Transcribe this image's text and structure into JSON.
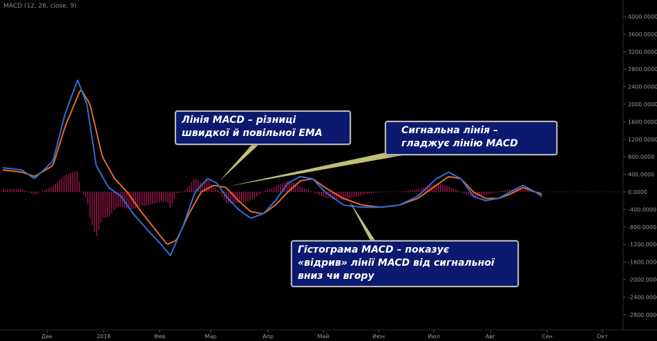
{
  "indicator_title": "MACD (12, 26, close, 9)",
  "colors": {
    "background": "#000000",
    "macd_line": "#2f6fd6",
    "signal_line": "#e86a2c",
    "histogram": "#c2185b",
    "callout_bg": "#0b1a6e",
    "pointer": "#e2e08a"
  },
  "callouts": [
    {
      "id": "macd",
      "lines": [
        "Лінія MACD – різниці",
        "швидкої й повільної EMA"
      ]
    },
    {
      "id": "signal",
      "lines": [
        "Сигнальна лінія –",
        "гладжує лінію MACD"
      ]
    },
    {
      "id": "hist",
      "lines": [
        "Гістограма MACD – показує",
        "«відрив» лінії MACD від сигнальної",
        "вниз чи вгору"
      ]
    }
  ],
  "chart_data": {
    "type": "line",
    "ylim": [
      -3000,
      4100
    ],
    "y_ticks": [
      "4000.0000",
      "3600.0000",
      "3200.0000",
      "2800.0000",
      "2400.0000",
      "2000.0000",
      "1600.0000",
      "1200.0000",
      "800.0000",
      "400.0000",
      "0.0000",
      "-400.0000",
      "-800.0000",
      "-1200.0000",
      "-1600.0000",
      "-2000.0000",
      "-2400.0000",
      "-2800.0000"
    ],
    "x_ticks": [
      "Дек",
      "2018",
      "Фев",
      "Мар",
      "Апр",
      "Май",
      "Июн",
      "Июл",
      "Авг",
      "Сен",
      "Окт"
    ],
    "series": [
      {
        "key": "macd",
        "points": [
          [
            0,
            550
          ],
          [
            0.03,
            500
          ],
          [
            0.05,
            300
          ],
          [
            0.08,
            700
          ],
          [
            0.1,
            1800
          ],
          [
            0.12,
            2550
          ],
          [
            0.135,
            2000
          ],
          [
            0.15,
            600
          ],
          [
            0.17,
            100
          ],
          [
            0.19,
            -100
          ],
          [
            0.21,
            -500
          ],
          [
            0.235,
            -900
          ],
          [
            0.255,
            -1200
          ],
          [
            0.27,
            -1450
          ],
          [
            0.29,
            -800
          ],
          [
            0.31,
            0
          ],
          [
            0.33,
            300
          ],
          [
            0.345,
            200
          ],
          [
            0.36,
            -100
          ],
          [
            0.38,
            -400
          ],
          [
            0.4,
            -600
          ],
          [
            0.42,
            -500
          ],
          [
            0.44,
            -200
          ],
          [
            0.46,
            200
          ],
          [
            0.48,
            350
          ],
          [
            0.5,
            300
          ],
          [
            0.52,
            0
          ],
          [
            0.55,
            -300
          ],
          [
            0.58,
            -350
          ],
          [
            0.61,
            -350
          ],
          [
            0.64,
            -300
          ],
          [
            0.67,
            -100
          ],
          [
            0.7,
            300
          ],
          [
            0.72,
            450
          ],
          [
            0.74,
            300
          ],
          [
            0.76,
            -100
          ],
          [
            0.78,
            -200
          ],
          [
            0.8,
            -150
          ],
          [
            0.82,
            0
          ],
          [
            0.84,
            150
          ],
          [
            0.86,
            0
          ],
          [
            0.87,
            -100
          ]
        ]
      },
      {
        "key": "signal",
        "points": [
          [
            0,
            500
          ],
          [
            0.03,
            450
          ],
          [
            0.05,
            350
          ],
          [
            0.08,
            600
          ],
          [
            0.1,
            1500
          ],
          [
            0.125,
            2350
          ],
          [
            0.14,
            2000
          ],
          [
            0.16,
            800
          ],
          [
            0.18,
            300
          ],
          [
            0.2,
            0
          ],
          [
            0.22,
            -400
          ],
          [
            0.245,
            -850
          ],
          [
            0.265,
            -1200
          ],
          [
            0.28,
            -1100
          ],
          [
            0.3,
            -500
          ],
          [
            0.32,
            0
          ],
          [
            0.34,
            150
          ],
          [
            0.36,
            100
          ],
          [
            0.38,
            -200
          ],
          [
            0.4,
            -450
          ],
          [
            0.42,
            -500
          ],
          [
            0.44,
            -300
          ],
          [
            0.46,
            0
          ],
          [
            0.48,
            250
          ],
          [
            0.5,
            300
          ],
          [
            0.52,
            100
          ],
          [
            0.55,
            -150
          ],
          [
            0.58,
            -300
          ],
          [
            0.61,
            -350
          ],
          [
            0.64,
            -300
          ],
          [
            0.67,
            -150
          ],
          [
            0.7,
            150
          ],
          [
            0.72,
            350
          ],
          [
            0.74,
            300
          ],
          [
            0.76,
            0
          ],
          [
            0.78,
            -150
          ],
          [
            0.8,
            -150
          ],
          [
            0.82,
            -50
          ],
          [
            0.84,
            100
          ],
          [
            0.86,
            0
          ],
          [
            0.87,
            -50
          ]
        ]
      }
    ]
  }
}
